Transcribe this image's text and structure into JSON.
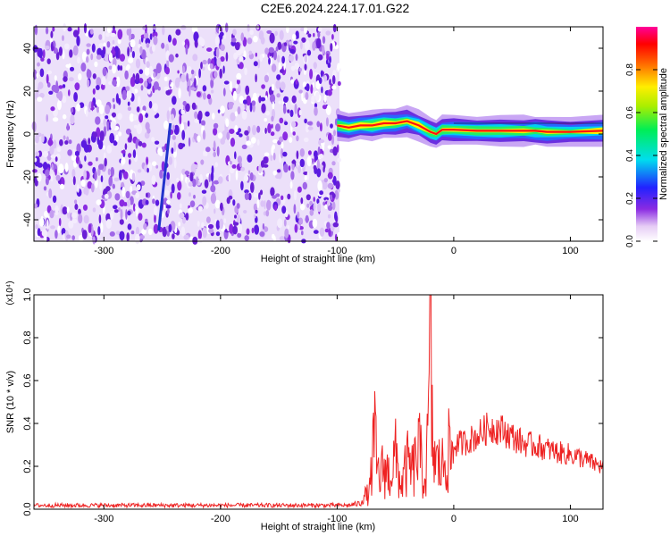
{
  "title": "C2E6.2024.224.17.01.G22",
  "colors": {
    "snr_line": "#ee2222",
    "ridge_line": "#2233cc",
    "axis": "#000000"
  },
  "chart_data": [
    {
      "type": "heatmap",
      "name": "spectrogram",
      "xlabel": "Height of straight line (km)",
      "ylabel": "Frequency (Hz)",
      "xlim": [
        -360,
        128
      ],
      "ylim": [
        -50,
        50
      ],
      "xticks": [
        -300,
        -200,
        -100,
        0,
        100
      ],
      "yticks": [
        -40,
        -20,
        0,
        20,
        40
      ],
      "colorbar": {
        "label": "Normalized spectral amplitude",
        "range": [
          0,
          1
        ],
        "ticks": [
          "0.0",
          "0.2",
          "0.4",
          "0.6",
          "0.8"
        ],
        "colormap": "rainbow (white-purple-blue-cyan-green-yellow-red-magenta)"
      },
      "features": {
        "noise_region_x": [
          -360,
          -98
        ],
        "signal_ridge": {
          "x": [
            -100,
            -90,
            -80,
            -70,
            -60,
            -50,
            -40,
            -30,
            -20,
            -15,
            -10,
            0,
            20,
            40,
            60,
            70,
            80,
            100,
            128
          ],
          "frequency_hz": [
            4,
            3,
            4,
            4,
            5,
            5,
            6,
            4,
            1,
            0,
            2,
            2,
            1.5,
            1.5,
            1.5,
            1.5,
            1,
            1,
            1.5
          ]
        },
        "diagonal_streak": {
          "x": [
            -253,
            -243
          ],
          "frequency_hz": [
            -45,
            5
          ]
        }
      },
      "grid": false
    },
    {
      "type": "line",
      "name": "snr",
      "xlabel": "Height of straight line (km)",
      "ylabel": "SNR (10 * v/v)",
      "y_multiplier": "(x10⁴)",
      "xlim": [
        -360,
        128
      ],
      "ylim": [
        0,
        1.0
      ],
      "xticks": [
        -300,
        -200,
        -100,
        0,
        100
      ],
      "yticks": [
        "0.0",
        "0.2",
        "0.4",
        "0.6",
        "0.8",
        "1.0"
      ],
      "series": [
        {
          "x": [
            -360,
            -340,
            -320,
            -300,
            -280,
            -260,
            -240,
            -220,
            -200,
            -180,
            -160,
            -140,
            -120,
            -100,
            -90,
            -80,
            -72,
            -70,
            -68,
            -66,
            -64,
            -60,
            -55,
            -50,
            -45,
            -40,
            -35,
            -30,
            -25,
            -22,
            -20,
            -18,
            -15,
            -10,
            -5,
            0,
            10,
            20,
            30,
            40,
            50,
            60,
            70,
            80,
            90,
            100,
            110,
            120,
            128
          ],
          "y": [
            0.02,
            0.02,
            0.02,
            0.02,
            0.02,
            0.02,
            0.02,
            0.02,
            0.02,
            0.02,
            0.02,
            0.02,
            0.02,
            0.02,
            0.02,
            0.03,
            0.12,
            0.32,
            0.48,
            0.3,
            0.2,
            0.28,
            0.22,
            0.35,
            0.15,
            0.3,
            0.25,
            0.4,
            0.18,
            0.45,
            0.95,
            0.4,
            0.3,
            0.28,
            0.38,
            0.35,
            0.37,
            0.4,
            0.45,
            0.44,
            0.4,
            0.36,
            0.35,
            0.33,
            0.31,
            0.3,
            0.28,
            0.25,
            0.23
          ]
        }
      ],
      "grid": false
    }
  ]
}
